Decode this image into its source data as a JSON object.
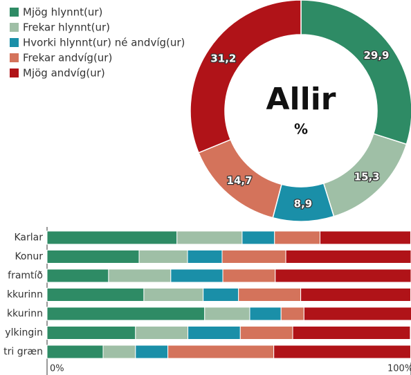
{
  "chart_data": [
    {
      "type": "pie",
      "title": "Allir",
      "subtitle": "%",
      "categories": [
        "Mjög hlynnt(ur)",
        "Frekar hlynnt(ur)",
        "Hvorki hlynnt(ur) né andvíg(ur)",
        "Frekar andvíg(ur)",
        "Mjög andvíg(ur)"
      ],
      "values": [
        29.9,
        15.3,
        8.9,
        14.7,
        31.2
      ],
      "value_labels": [
        "29,9",
        "15,3",
        "8,9",
        "14,7",
        "31,2"
      ],
      "colors": [
        "#2e8b65",
        "#9fbfa6",
        "#1a8fa8",
        "#d4735b",
        "#b01318"
      ]
    },
    {
      "type": "stacked-bar-horizontal",
      "categories": [
        "Karlar",
        "Konur",
        "framtíð",
        "kkurinn",
        "kkurinn",
        "ylkingin",
        "tri græn"
      ],
      "series": [
        {
          "color": "#2e8b65",
          "values": [
            35.7,
            25.3,
            16.9,
            26.6,
            43.3,
            24.3,
            15.4
          ]
        },
        {
          "color": "#9fbfa6",
          "values": [
            17.9,
            13.3,
            17.1,
            16.3,
            12.4,
            14.4,
            8.9
          ]
        },
        {
          "color": "#1a8fa8",
          "values": [
            8.9,
            9.5,
            14.3,
            9.7,
            8.6,
            14.4,
            8.9
          ]
        },
        {
          "color": "#d4735b",
          "values": [
            12.5,
            17.5,
            14.4,
            17.1,
            6.3,
            14.4,
            29.1
          ]
        },
        {
          "color": "#b01318",
          "values": [
            24.9,
            34.4,
            37.3,
            30.2,
            29.5,
            32.3,
            37.6
          ]
        }
      ],
      "xlim": [
        0,
        100
      ],
      "xticks": [
        {
          "value": 0,
          "label": "0%"
        },
        {
          "value": 100,
          "label": "100%"
        }
      ]
    }
  ]
}
